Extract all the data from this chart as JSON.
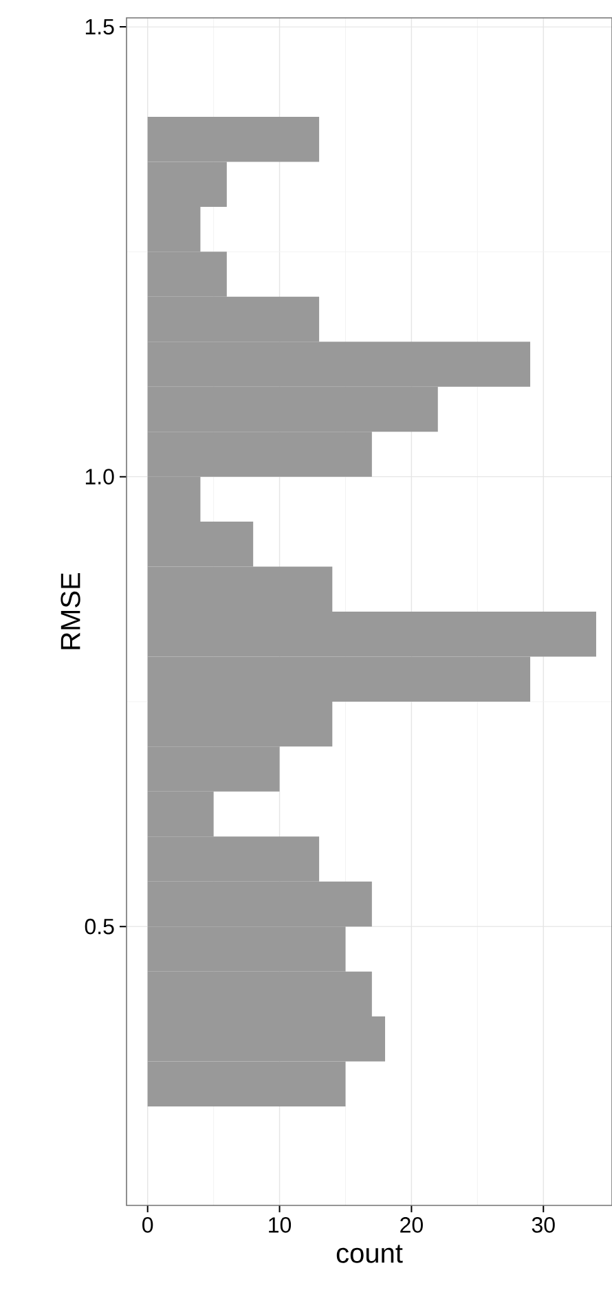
{
  "chart_data": {
    "type": "histogram",
    "orientation": "horizontal",
    "xlabel": "count",
    "ylabel": "RMSE",
    "color": "#999999",
    "bins": [
      0.25,
      0.3,
      0.35,
      0.4,
      0.45,
      0.5,
      0.55,
      0.6,
      0.65,
      0.7,
      0.75,
      0.8,
      0.85,
      0.9,
      0.95,
      1.0,
      1.05,
      1.1,
      1.15,
      1.2,
      1.25,
      1.3,
      1.35,
      1.4,
      1.45
    ],
    "values": [
      0,
      15,
      18,
      17,
      15,
      17,
      13,
      5,
      10,
      14,
      29,
      34,
      14,
      8,
      4,
      17,
      22,
      29,
      13,
      6,
      4,
      6,
      13,
      0
    ],
    "xlim": [
      -1.6,
      35.2
    ],
    "ylim": [
      0.19,
      1.51
    ],
    "xticks": [
      0,
      10,
      20,
      30
    ],
    "yticks": [
      {
        "value": 0.5,
        "label": "0.5"
      },
      {
        "value": 1.0,
        "label": "1.0"
      },
      {
        "value": 1.5,
        "label": "1.5"
      }
    ],
    "grid": true
  }
}
